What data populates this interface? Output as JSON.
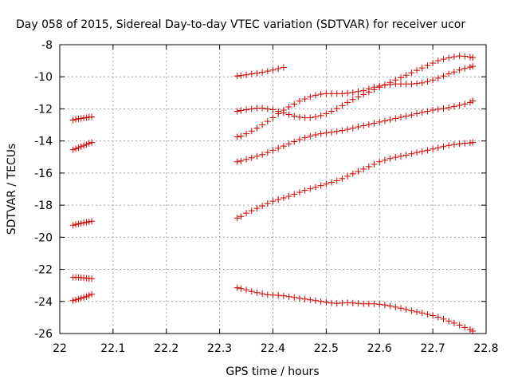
{
  "chart_data": {
    "type": "scatter",
    "title": "Day 058 of 2015, Sidereal Day-to-day VTEC variation (SDTVAR) for receiver ucor",
    "xlabel": "GPS time / hours",
    "ylabel": "SDTVAR / TECUs",
    "xlim": [
      22,
      22.8
    ],
    "ylim": [
      -26,
      -8
    ],
    "xticks": [
      "22",
      "22.1",
      "22.2",
      "22.3",
      "22.4",
      "22.5",
      "22.6",
      "22.7",
      "22.8"
    ],
    "yticks": [
      "-8",
      "-10",
      "-12",
      "-14",
      "-16",
      "-18",
      "-20",
      "-22",
      "-24",
      "-26"
    ],
    "grid": true,
    "marker": "+",
    "color": "#d00000",
    "series": [
      {
        "name": "s1",
        "points": [
          [
            22.025,
            -12.7
          ],
          [
            22.03,
            -12.65
          ],
          [
            22.035,
            -12.62
          ],
          [
            22.04,
            -12.6
          ],
          [
            22.045,
            -12.57
          ],
          [
            22.05,
            -12.55
          ],
          [
            22.055,
            -12.52
          ],
          [
            22.06,
            -12.5
          ]
        ]
      },
      {
        "name": "s2",
        "points": [
          [
            22.025,
            -14.55
          ],
          [
            22.03,
            -14.48
          ],
          [
            22.035,
            -14.42
          ],
          [
            22.04,
            -14.35
          ],
          [
            22.045,
            -14.28
          ],
          [
            22.05,
            -14.22
          ],
          [
            22.055,
            -14.15
          ],
          [
            22.06,
            -14.1
          ]
        ]
      },
      {
        "name": "s3",
        "points": [
          [
            22.025,
            -19.25
          ],
          [
            22.03,
            -19.2
          ],
          [
            22.035,
            -19.17
          ],
          [
            22.04,
            -19.13
          ],
          [
            22.045,
            -19.1
          ],
          [
            22.05,
            -19.07
          ],
          [
            22.055,
            -19.03
          ],
          [
            22.06,
            -19.0
          ]
        ]
      },
      {
        "name": "s4",
        "points": [
          [
            22.025,
            -22.5
          ],
          [
            22.03,
            -22.5
          ],
          [
            22.035,
            -22.5
          ],
          [
            22.04,
            -22.52
          ],
          [
            22.045,
            -22.53
          ],
          [
            22.05,
            -22.55
          ],
          [
            22.055,
            -22.57
          ],
          [
            22.06,
            -22.58
          ]
        ]
      },
      {
        "name": "s5",
        "points": [
          [
            22.025,
            -23.95
          ],
          [
            22.03,
            -23.9
          ],
          [
            22.035,
            -23.85
          ],
          [
            22.04,
            -23.8
          ],
          [
            22.045,
            -23.75
          ],
          [
            22.05,
            -23.7
          ],
          [
            22.055,
            -23.62
          ],
          [
            22.06,
            -23.55
          ]
        ]
      },
      {
        "name": "s6",
        "points": [
          [
            22.333,
            -9.95
          ],
          [
            22.34,
            -9.92
          ],
          [
            22.35,
            -9.88
          ],
          [
            22.36,
            -9.82
          ],
          [
            22.37,
            -9.78
          ],
          [
            22.38,
            -9.72
          ],
          [
            22.39,
            -9.65
          ],
          [
            22.4,
            -9.58
          ],
          [
            22.41,
            -9.5
          ],
          [
            22.42,
            -9.42
          ]
        ]
      },
      {
        "name": "s7",
        "points": [
          [
            22.333,
            -12.15
          ],
          [
            22.34,
            -12.1
          ],
          [
            22.35,
            -12.05
          ],
          [
            22.36,
            -12.0
          ],
          [
            22.37,
            -11.95
          ],
          [
            22.38,
            -11.95
          ],
          [
            22.39,
            -12.0
          ],
          [
            22.4,
            -12.05
          ],
          [
            22.41,
            -12.15
          ],
          [
            22.42,
            -12.25
          ],
          [
            22.43,
            -12.35
          ],
          [
            22.44,
            -12.45
          ],
          [
            22.45,
            -12.52
          ],
          [
            22.46,
            -12.55
          ],
          [
            22.47,
            -12.55
          ],
          [
            22.48,
            -12.5
          ],
          [
            22.49,
            -12.42
          ],
          [
            22.5,
            -12.3
          ],
          [
            22.51,
            -12.15
          ],
          [
            22.52,
            -11.98
          ],
          [
            22.53,
            -11.8
          ],
          [
            22.54,
            -11.6
          ],
          [
            22.55,
            -11.42
          ],
          [
            22.56,
            -11.25
          ],
          [
            22.57,
            -11.1
          ],
          [
            22.58,
            -10.95
          ],
          [
            22.59,
            -10.8
          ],
          [
            22.6,
            -10.65
          ],
          [
            22.61,
            -10.5
          ],
          [
            22.62,
            -10.35
          ],
          [
            22.63,
            -10.2
          ],
          [
            22.64,
            -10.05
          ],
          [
            22.65,
            -9.9
          ],
          [
            22.66,
            -9.75
          ],
          [
            22.67,
            -9.6
          ],
          [
            22.68,
            -9.45
          ],
          [
            22.69,
            -9.3
          ],
          [
            22.7,
            -9.15
          ],
          [
            22.71,
            -9.0
          ],
          [
            22.72,
            -8.9
          ],
          [
            22.73,
            -8.82
          ],
          [
            22.74,
            -8.75
          ],
          [
            22.75,
            -8.7
          ],
          [
            22.76,
            -8.72
          ],
          [
            22.77,
            -8.78
          ],
          [
            22.775,
            -8.8
          ]
        ]
      },
      {
        "name": "s8",
        "points": [
          [
            22.333,
            -13.75
          ],
          [
            22.34,
            -13.7
          ],
          [
            22.35,
            -13.55
          ],
          [
            22.36,
            -13.38
          ],
          [
            22.37,
            -13.2
          ],
          [
            22.38,
            -13.0
          ],
          [
            22.39,
            -12.78
          ],
          [
            22.4,
            -12.55
          ],
          [
            22.41,
            -12.3
          ],
          [
            22.42,
            -12.08
          ],
          [
            22.43,
            -11.88
          ],
          [
            22.44,
            -11.7
          ],
          [
            22.45,
            -11.52
          ],
          [
            22.46,
            -11.38
          ],
          [
            22.47,
            -11.25
          ],
          [
            22.48,
            -11.15
          ],
          [
            22.49,
            -11.08
          ],
          [
            22.5,
            -11.05
          ],
          [
            22.51,
            -11.05
          ],
          [
            22.52,
            -11.05
          ],
          [
            22.53,
            -11.05
          ],
          [
            22.54,
            -11.02
          ],
          [
            22.55,
            -10.98
          ],
          [
            22.56,
            -10.92
          ],
          [
            22.57,
            -10.85
          ],
          [
            22.58,
            -10.75
          ],
          [
            22.59,
            -10.65
          ],
          [
            22.6,
            -10.58
          ],
          [
            22.61,
            -10.52
          ],
          [
            22.62,
            -10.48
          ],
          [
            22.63,
            -10.45
          ],
          [
            22.64,
            -10.45
          ],
          [
            22.65,
            -10.45
          ],
          [
            22.66,
            -10.45
          ],
          [
            22.67,
            -10.42
          ],
          [
            22.68,
            -10.38
          ],
          [
            22.69,
            -10.3
          ],
          [
            22.7,
            -10.2
          ],
          [
            22.71,
            -10.08
          ],
          [
            22.72,
            -9.95
          ],
          [
            22.73,
            -9.82
          ],
          [
            22.74,
            -9.7
          ],
          [
            22.75,
            -9.58
          ],
          [
            22.76,
            -9.48
          ],
          [
            22.77,
            -9.4
          ],
          [
            22.775,
            -9.35
          ]
        ]
      },
      {
        "name": "s9",
        "points": [
          [
            22.333,
            -15.3
          ],
          [
            22.34,
            -15.25
          ],
          [
            22.35,
            -15.15
          ],
          [
            22.36,
            -15.05
          ],
          [
            22.37,
            -14.95
          ],
          [
            22.38,
            -14.85
          ],
          [
            22.39,
            -14.72
          ],
          [
            22.4,
            -14.58
          ],
          [
            22.41,
            -14.45
          ],
          [
            22.42,
            -14.32
          ],
          [
            22.43,
            -14.18
          ],
          [
            22.44,
            -14.05
          ],
          [
            22.45,
            -13.92
          ],
          [
            22.46,
            -13.8
          ],
          [
            22.47,
            -13.7
          ],
          [
            22.48,
            -13.62
          ],
          [
            22.49,
            -13.55
          ],
          [
            22.5,
            -13.5
          ],
          [
            22.51,
            -13.45
          ],
          [
            22.52,
            -13.4
          ],
          [
            22.53,
            -13.35
          ],
          [
            22.54,
            -13.28
          ],
          [
            22.55,
            -13.2
          ],
          [
            22.56,
            -13.12
          ],
          [
            22.57,
            -13.05
          ],
          [
            22.58,
            -12.98
          ],
          [
            22.59,
            -12.9
          ],
          [
            22.6,
            -12.82
          ],
          [
            22.61,
            -12.75
          ],
          [
            22.62,
            -12.68
          ],
          [
            22.63,
            -12.6
          ],
          [
            22.64,
            -12.52
          ],
          [
            22.65,
            -12.45
          ],
          [
            22.66,
            -12.38
          ],
          [
            22.67,
            -12.3
          ],
          [
            22.68,
            -12.22
          ],
          [
            22.69,
            -12.15
          ],
          [
            22.7,
            -12.08
          ],
          [
            22.71,
            -12.02
          ],
          [
            22.72,
            -11.98
          ],
          [
            22.73,
            -11.92
          ],
          [
            22.74,
            -11.85
          ],
          [
            22.75,
            -11.78
          ],
          [
            22.76,
            -11.7
          ],
          [
            22.77,
            -11.6
          ],
          [
            22.775,
            -11.5
          ]
        ]
      },
      {
        "name": "s10",
        "points": [
          [
            22.333,
            -18.8
          ],
          [
            22.34,
            -18.7
          ],
          [
            22.35,
            -18.5
          ],
          [
            22.36,
            -18.35
          ],
          [
            22.37,
            -18.2
          ],
          [
            22.38,
            -18.05
          ],
          [
            22.39,
            -17.9
          ],
          [
            22.4,
            -17.75
          ],
          [
            22.41,
            -17.65
          ],
          [
            22.42,
            -17.55
          ],
          [
            22.43,
            -17.45
          ],
          [
            22.44,
            -17.32
          ],
          [
            22.45,
            -17.2
          ],
          [
            22.46,
            -17.08
          ],
          [
            22.47,
            -16.98
          ],
          [
            22.48,
            -16.88
          ],
          [
            22.49,
            -16.78
          ],
          [
            22.5,
            -16.68
          ],
          [
            22.51,
            -16.58
          ],
          [
            22.52,
            -16.48
          ],
          [
            22.53,
            -16.35
          ],
          [
            22.54,
            -16.2
          ],
          [
            22.55,
            -16.05
          ],
          [
            22.56,
            -15.9
          ],
          [
            22.57,
            -15.75
          ],
          [
            22.58,
            -15.6
          ],
          [
            22.59,
            -15.45
          ],
          [
            22.6,
            -15.3
          ],
          [
            22.61,
            -15.2
          ],
          [
            22.62,
            -15.1
          ],
          [
            22.63,
            -15.02
          ],
          [
            22.64,
            -14.95
          ],
          [
            22.65,
            -14.88
          ],
          [
            22.66,
            -14.8
          ],
          [
            22.67,
            -14.72
          ],
          [
            22.68,
            -14.65
          ],
          [
            22.69,
            -14.58
          ],
          [
            22.7,
            -14.5
          ],
          [
            22.71,
            -14.42
          ],
          [
            22.72,
            -14.35
          ],
          [
            22.73,
            -14.28
          ],
          [
            22.74,
            -14.22
          ],
          [
            22.75,
            -14.18
          ],
          [
            22.76,
            -14.15
          ],
          [
            22.77,
            -14.12
          ],
          [
            22.775,
            -14.1
          ]
        ]
      },
      {
        "name": "s11",
        "points": [
          [
            22.333,
            -23.15
          ],
          [
            22.34,
            -23.2
          ],
          [
            22.35,
            -23.28
          ],
          [
            22.36,
            -23.38
          ],
          [
            22.37,
            -23.45
          ],
          [
            22.38,
            -23.52
          ],
          [
            22.39,
            -23.58
          ],
          [
            22.4,
            -23.6
          ],
          [
            22.41,
            -23.62
          ],
          [
            22.42,
            -23.65
          ],
          [
            22.43,
            -23.7
          ],
          [
            22.44,
            -23.75
          ],
          [
            22.45,
            -23.8
          ],
          [
            22.46,
            -23.85
          ],
          [
            22.47,
            -23.9
          ],
          [
            22.48,
            -23.95
          ],
          [
            22.49,
            -24.0
          ],
          [
            22.5,
            -24.05
          ],
          [
            22.51,
            -24.1
          ],
          [
            22.52,
            -24.12
          ],
          [
            22.53,
            -24.1
          ],
          [
            22.54,
            -24.08
          ],
          [
            22.55,
            -24.1
          ],
          [
            22.56,
            -24.12
          ],
          [
            22.57,
            -24.15
          ],
          [
            22.58,
            -24.15
          ],
          [
            22.59,
            -24.15
          ],
          [
            22.6,
            -24.18
          ],
          [
            22.61,
            -24.22
          ],
          [
            22.62,
            -24.28
          ],
          [
            22.63,
            -24.35
          ],
          [
            22.64,
            -24.42
          ],
          [
            22.65,
            -24.5
          ],
          [
            22.66,
            -24.58
          ],
          [
            22.67,
            -24.65
          ],
          [
            22.68,
            -24.72
          ],
          [
            22.69,
            -24.8
          ],
          [
            22.7,
            -24.88
          ],
          [
            22.71,
            -24.98
          ],
          [
            22.72,
            -25.1
          ],
          [
            22.73,
            -25.22
          ],
          [
            22.74,
            -25.35
          ],
          [
            22.75,
            -25.48
          ],
          [
            22.76,
            -25.62
          ],
          [
            22.77,
            -25.75
          ],
          [
            22.775,
            -25.85
          ]
        ]
      }
    ]
  }
}
